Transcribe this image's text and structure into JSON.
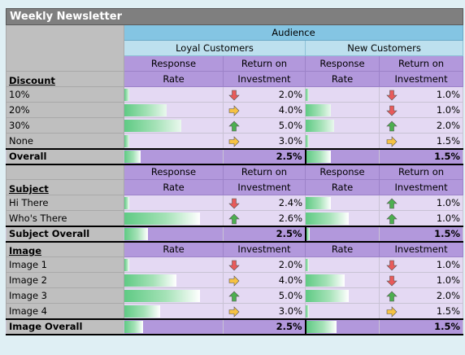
{
  "title": "Weekly Newsletter",
  "audience_label": "Audience",
  "groups": [
    "Loyal Customers",
    "New Customers"
  ],
  "headers": {
    "response_rate": [
      "Response",
      "Rate"
    ],
    "roi": [
      "Return on",
      "Investment"
    ],
    "rate_short": "Rate",
    "investment_short": "Investment"
  },
  "sections": [
    {
      "label": "Discount",
      "rows": [
        {
          "label": "10%",
          "loyal_rate": 0.05,
          "loyal_roi": "2.0%",
          "loyal_arrow": "down",
          "new_rate": 0.05,
          "new_roi": "1.0%",
          "new_arrow": "down"
        },
        {
          "label": "20%",
          "loyal_rate": 0.45,
          "loyal_roi": "4.0%",
          "loyal_arrow": "right",
          "new_rate": 0.35,
          "new_roi": "1.0%",
          "new_arrow": "down"
        },
        {
          "label": "30%",
          "loyal_rate": 0.6,
          "loyal_roi": "5.0%",
          "loyal_arrow": "up",
          "new_rate": 0.4,
          "new_roi": "2.0%",
          "new_arrow": "up"
        },
        {
          "label": "None",
          "loyal_rate": 0.05,
          "loyal_roi": "3.0%",
          "loyal_arrow": "right",
          "new_rate": 0.05,
          "new_roi": "1.5%",
          "new_arrow": "right"
        }
      ],
      "overall_label": "Overall",
      "overall_loyal_rate": 0.17,
      "overall_loyal_roi": "2.5%",
      "overall_new_rate": 0.34,
      "overall_new_roi": "1.5%"
    },
    {
      "label": "Subject",
      "rows": [
        {
          "label": "Hi There",
          "loyal_rate": 0.05,
          "loyal_roi": "2.4%",
          "loyal_arrow": "down",
          "new_rate": 0.35,
          "new_roi": "1.0%",
          "new_arrow": "up"
        },
        {
          "label": "Who's There",
          "loyal_rate": 0.8,
          "loyal_roi": "2.6%",
          "loyal_arrow": "up",
          "new_rate": 0.6,
          "new_roi": "1.0%",
          "new_arrow": "up"
        }
      ],
      "overall_label": "Subject Overall",
      "overall_loyal_rate": 0.25,
      "overall_loyal_roi": "2.5%",
      "overall_new_rate": 0.05,
      "overall_new_roi": "1.5%"
    },
    {
      "label": "Image",
      "rows": [
        {
          "label": "Image 1",
          "loyal_rate": 0.05,
          "loyal_roi": "2.0%",
          "loyal_arrow": "down",
          "new_rate": 0.05,
          "new_roi": "1.0%",
          "new_arrow": "down"
        },
        {
          "label": "Image 2",
          "loyal_rate": 0.55,
          "loyal_roi": "4.0%",
          "loyal_arrow": "right",
          "new_rate": 0.55,
          "new_roi": "1.0%",
          "new_arrow": "down"
        },
        {
          "label": "Image 3",
          "loyal_rate": 0.8,
          "loyal_roi": "5.0%",
          "loyal_arrow": "up",
          "new_rate": 0.6,
          "new_roi": "2.0%",
          "new_arrow": "up"
        },
        {
          "label": "Image 4",
          "loyal_rate": 0.38,
          "loyal_roi": "3.0%",
          "loyal_arrow": "right",
          "new_rate": 0.05,
          "new_roi": "1.5%",
          "new_arrow": "right"
        }
      ],
      "overall_label": "Image Overall",
      "overall_loyal_rate": 0.2,
      "overall_loyal_roi": "2.5%",
      "overall_new_rate": 0.42,
      "overall_new_roi": "1.5%"
    }
  ],
  "colors": {
    "header_purple": "#b298dc",
    "light_purple": "#e4d9f3",
    "audience_blue": "#84c5e3",
    "group_blue": "#bde0ee",
    "label_gray": "#bfbfbf",
    "title_gray": "#7f7f7f",
    "bar_green": "#5fca84",
    "arrow_up": "#4caf50",
    "arrow_down": "#e85a5a",
    "arrow_right": "#f6c242"
  }
}
